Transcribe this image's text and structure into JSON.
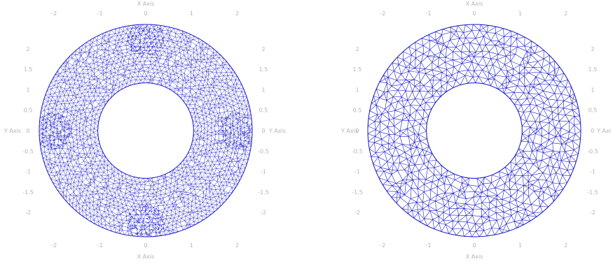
{
  "figures": [
    {
      "mesh_density": "fine",
      "refined_at": [
        "top",
        "bottom",
        "left",
        "right"
      ],
      "x_axis_label_top": "X Axis",
      "x_axis_label_bottom": "X Axis",
      "y_axis_label_left": "Y Axis",
      "y_axis_label_right": "Y Axis",
      "x_ticks": [
        "-2",
        "-1",
        "0",
        "1",
        "2"
      ],
      "y_ticks": [
        "2",
        "1.5",
        "1",
        "0.5",
        "0",
        "-0.5",
        "-1",
        "-1.5",
        "-2"
      ],
      "inner_radius": 0.9,
      "outer_radius": 2.0
    },
    {
      "mesh_density": "uniform",
      "refined_at": [],
      "x_axis_label_top": "X Axis",
      "x_axis_label_bottom": "X Axis",
      "y_axis_label_left": "Y Axis",
      "y_axis_label_right": "Y Axi",
      "x_ticks": [
        "-2",
        "-1",
        "0",
        "1",
        "2"
      ],
      "y_ticks": [
        "2",
        "1.5",
        "1",
        "0.5",
        "0",
        "-0.5",
        "-1",
        "-1.5",
        "-2"
      ],
      "inner_radius": 0.9,
      "outer_radius": 2.0
    }
  ],
  "colors": {
    "mesh": "#1a1acc",
    "tick_text": "#b3b3b3",
    "background": "#ffffff"
  }
}
